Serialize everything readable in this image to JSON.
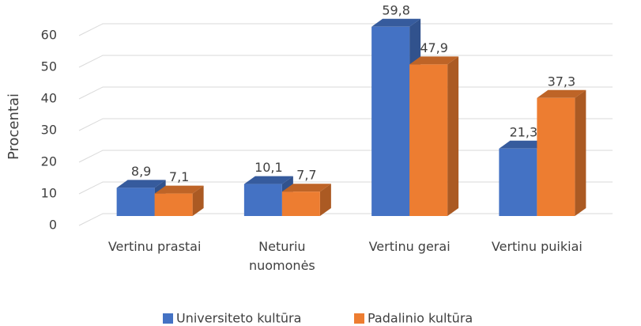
{
  "chart_data": {
    "type": "bar3d",
    "y_label": "Procentai",
    "categories": [
      "Vertinu prastai",
      "Neturiu\nnuomonės",
      "Vertinu gerai",
      "Vertinu puikiai"
    ],
    "series": [
      {
        "name": "Universiteto kultūra",
        "color": "#4472c4",
        "values": [
          8.9,
          10.1,
          59.8,
          21.3
        ],
        "value_labels": [
          "8,9",
          "10,1",
          "59,8",
          "21,3"
        ]
      },
      {
        "name": "Padalinio kultūra",
        "color": "#ed7d31",
        "values": [
          7.1,
          7.7,
          47.9,
          37.3
        ],
        "value_labels": [
          "7,1",
          "7,7",
          "47,9",
          "37,3"
        ]
      }
    ],
    "ylim": [
      0,
      60
    ],
    "yticks": [
      0,
      10,
      20,
      30,
      40,
      50,
      60
    ],
    "grid": true,
    "legend": "bottom"
  }
}
